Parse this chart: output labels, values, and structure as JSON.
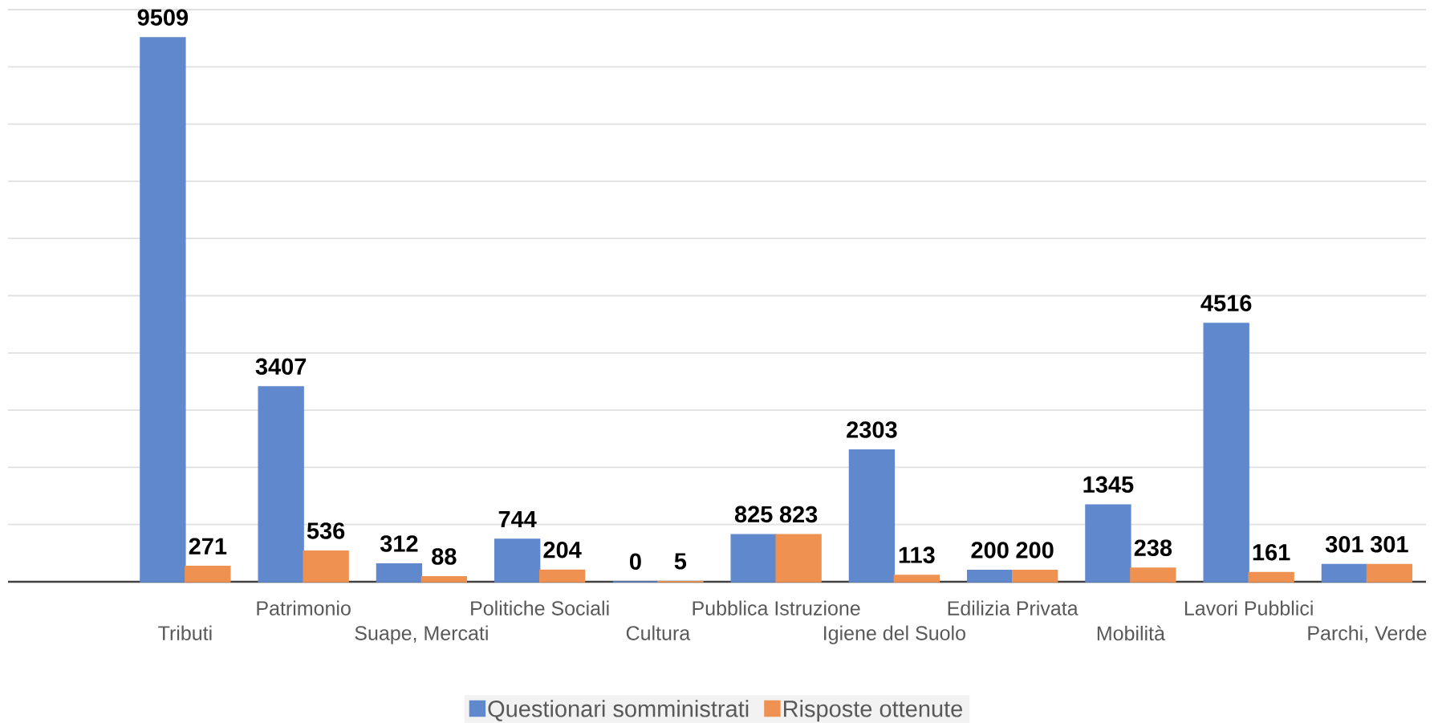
{
  "chart_data": {
    "type": "bar",
    "categories": [
      null,
      "Tributi",
      "Patrimonio",
      "Suape, Mercati",
      "Politiche Sociali",
      "Cultura",
      "Pubblica Istruzione",
      "Igiene del Suolo",
      "Edilizia Privata",
      "Mobilità",
      "Lavori Pubblici",
      "Parchi, Verde"
    ],
    "series": [
      {
        "name": "Questionari somministrati",
        "color": "#6088cd",
        "values": [
          null,
          9509,
          3407,
          312,
          744,
          0,
          825,
          2303,
          200,
          1345,
          4516,
          301
        ]
      },
      {
        "name": "Risposte ottenute",
        "color": "#ef9150",
        "values": [
          null,
          271,
          536,
          88,
          204,
          5,
          823,
          113,
          200,
          238,
          161,
          301
        ]
      }
    ],
    "ylim": [
      0,
      10000
    ],
    "yticks": [
      {
        "value": 0,
        "label": null
      },
      {
        "value": 1000,
        "label": null
      },
      {
        "value": 2000,
        "label": null
      },
      {
        "value": 3000,
        "label": null
      },
      {
        "value": 4000,
        "label": null
      },
      {
        "value": 5000,
        "label": null
      },
      {
        "value": 6000,
        "label": null
      },
      {
        "value": 7000,
        "label": null
      },
      {
        "value": 8000,
        "label": null
      },
      {
        "value": 9000,
        "label": null
      },
      {
        "value": 10000,
        "label": null
      }
    ],
    "grid": "y",
    "legend": "bottom",
    "tick_labels": "x",
    "data_labels": true
  }
}
